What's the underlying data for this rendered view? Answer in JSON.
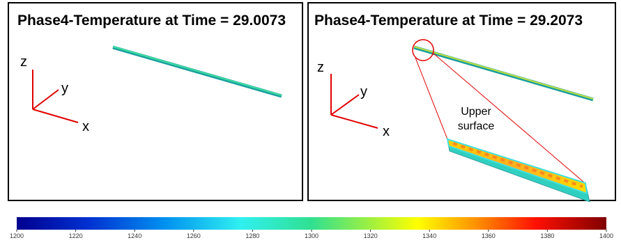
{
  "panels": [
    {
      "title": "Phase4-Temperature at Time = 29.0073",
      "axes": {
        "x": "x",
        "y": "y",
        "z": "z"
      }
    },
    {
      "title": "Phase4-Temperature at Time = 29.2073",
      "axes": {
        "x": "x",
        "y": "y",
        "z": "z"
      },
      "annotation": [
        "Upper",
        "surface"
      ]
    }
  ],
  "colorbar": {
    "range": [
      1200,
      1400
    ],
    "ticks": [
      1200,
      1220,
      1240,
      1260,
      1280,
      1300,
      1320,
      1340,
      1360,
      1380,
      1400
    ]
  }
}
